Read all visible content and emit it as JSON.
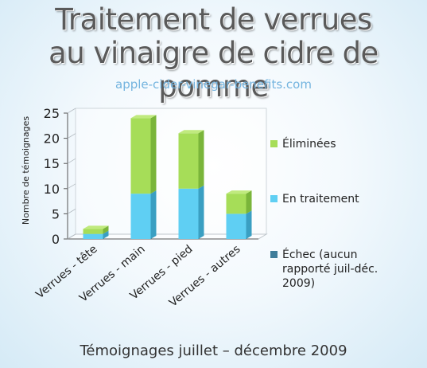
{
  "title_line1": "Traitement de verrues",
  "title_line2": "au vinaigre de cidre de pomme",
  "subtitle": "apple-cider-vinegar-benefits.com",
  "footer": "Témoignages juillet – décembre 2009",
  "colors": {
    "eliminated": "#a6dd58",
    "treatment": "#5fcff3",
    "failure": "#3f7d9a"
  },
  "chart_data": {
    "type": "bar",
    "stacked": true,
    "three_d": true,
    "ylabel": "Nombre de témoignages",
    "ylim": [
      0,
      25
    ],
    "yticks": [
      0,
      5,
      10,
      15,
      20,
      25
    ],
    "grid": false,
    "legend_position": "right",
    "categories": [
      "Verrues - tête",
      "Verrues - main",
      "Verrues - pied",
      "Verrues - autres"
    ],
    "series": [
      {
        "name": "Échec (aucun rapporté juil-déc. 2009)",
        "values": [
          0,
          0,
          0,
          0
        ]
      },
      {
        "name": "En traitement",
        "values": [
          1,
          9,
          10,
          5
        ]
      },
      {
        "name": "Éliminées",
        "values": [
          1,
          15,
          11,
          4
        ]
      }
    ]
  }
}
